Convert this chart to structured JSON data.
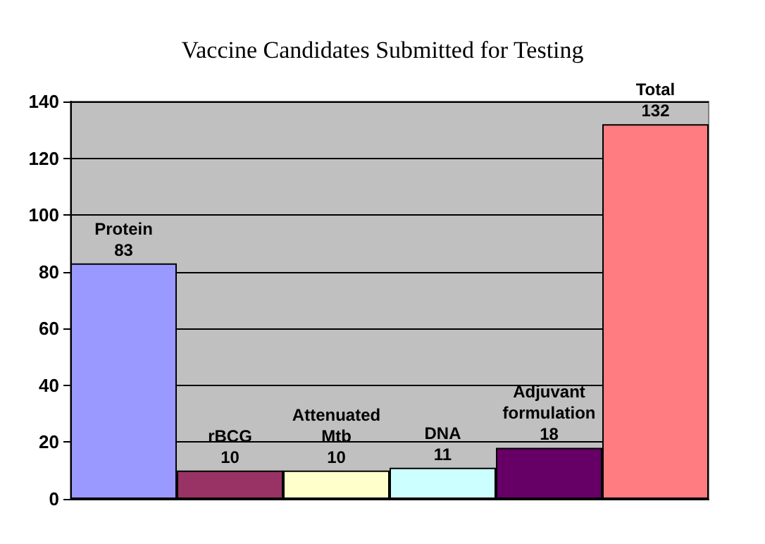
{
  "chart_data": {
    "type": "bar",
    "title": "Vaccine Candidates Submitted for Testing",
    "categories": [
      "Protein",
      "rBCG",
      "Attenuated Mtb",
      "DNA",
      "Adjuvant formulation",
      "Total"
    ],
    "values": [
      83,
      10,
      10,
      11,
      18,
      132
    ],
    "colors": [
      "#9999ff",
      "#993366",
      "#ffffcc",
      "#ccffff",
      "#660066",
      "#ff7c80"
    ],
    "ylim": [
      0,
      140
    ],
    "yticks": [
      0,
      20,
      40,
      60,
      80,
      100,
      120,
      140
    ],
    "grid": "y",
    "tick_labels": "y",
    "data_labels": true
  }
}
